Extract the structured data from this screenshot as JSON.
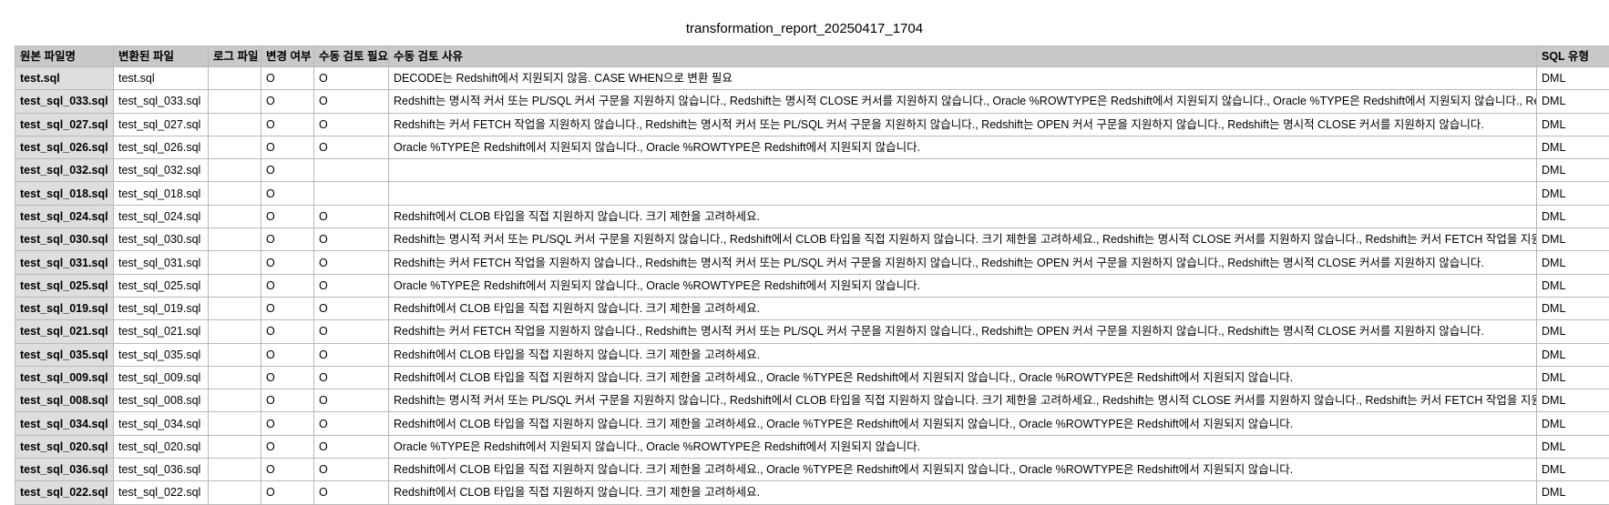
{
  "title": "transformation_report_20250417_1704",
  "columns": {
    "source_file": "원본 파일명",
    "converted_file": "변환된 파일",
    "log_file": "로그 파일",
    "changed": "변경 여부",
    "manual_review": "수동 검토 필요",
    "review_reason": "수동 검토 사유",
    "sql_type": "SQL 유형"
  },
  "rows": [
    {
      "source": "test.sql",
      "converted": "test.sql",
      "log": "",
      "changed": "O",
      "review": "O",
      "reason": "DECODE는 Redshift에서 지원되지 않음. CASE WHEN으로 변환 필요",
      "type": "DML"
    },
    {
      "source": "test_sql_033.sql",
      "converted": "test_sql_033.sql",
      "log": "",
      "changed": "O",
      "review": "O",
      "reason": "Redshift는 명시적 커서 또는 PL/SQL 커서 구문을 지원하지 않습니다., Redshift는 명시적 CLOSE 커서를 지원하지 않습니다., Oracle %ROWTYPE은 Redshift에서 지원되지 않습니다., Oracle %TYPE은 Redshift에서 지원되지 않습니다., Redshift는",
      "type": "DML"
    },
    {
      "source": "test_sql_027.sql",
      "converted": "test_sql_027.sql",
      "log": "",
      "changed": "O",
      "review": "O",
      "reason": "Redshift는 커서 FETCH 작업을 지원하지 않습니다., Redshift는 명시적 커서 또는 PL/SQL 커서 구문을 지원하지 않습니다., Redshift는 OPEN 커서 구문을 지원하지 않습니다., Redshift는 명시적 CLOSE 커서를 지원하지 않습니다.",
      "type": "DML"
    },
    {
      "source": "test_sql_026.sql",
      "converted": "test_sql_026.sql",
      "log": "",
      "changed": "O",
      "review": "O",
      "reason": "Oracle %TYPE은 Redshift에서 지원되지 않습니다., Oracle %ROWTYPE은 Redshift에서 지원되지 않습니다.",
      "type": "DML"
    },
    {
      "source": "test_sql_032.sql",
      "converted": "test_sql_032.sql",
      "log": "",
      "changed": "O",
      "review": "",
      "reason": "",
      "type": "DML"
    },
    {
      "source": "test_sql_018.sql",
      "converted": "test_sql_018.sql",
      "log": "",
      "changed": "O",
      "review": "",
      "reason": "",
      "type": "DML"
    },
    {
      "source": "test_sql_024.sql",
      "converted": "test_sql_024.sql",
      "log": "",
      "changed": "O",
      "review": "O",
      "reason": "Redshift에서 CLOB 타입을 직접 지원하지 않습니다. 크기 제한을 고려하세요.",
      "type": "DML"
    },
    {
      "source": "test_sql_030.sql",
      "converted": "test_sql_030.sql",
      "log": "",
      "changed": "O",
      "review": "O",
      "reason": "Redshift는 명시적 커서 또는 PL/SQL 커서 구문을 지원하지 않습니다., Redshift에서 CLOB 타입을 직접 지원하지 않습니다. 크기 제한을 고려하세요., Redshift는 명시적 CLOSE 커서를 지원하지 않습니다., Redshift는 커서 FETCH 작업을 지원하지 않습",
      "type": "DML"
    },
    {
      "source": "test_sql_031.sql",
      "converted": "test_sql_031.sql",
      "log": "",
      "changed": "O",
      "review": "O",
      "reason": "Redshift는 커서 FETCH 작업을 지원하지 않습니다., Redshift는 명시적 커서 또는 PL/SQL 커서 구문을 지원하지 않습니다., Redshift는 OPEN 커서 구문을 지원하지 않습니다., Redshift는 명시적 CLOSE 커서를 지원하지 않습니다.",
      "type": "DML"
    },
    {
      "source": "test_sql_025.sql",
      "converted": "test_sql_025.sql",
      "log": "",
      "changed": "O",
      "review": "O",
      "reason": "Oracle %TYPE은 Redshift에서 지원되지 않습니다., Oracle %ROWTYPE은 Redshift에서 지원되지 않습니다.",
      "type": "DML"
    },
    {
      "source": "test_sql_019.sql",
      "converted": "test_sql_019.sql",
      "log": "",
      "changed": "O",
      "review": "O",
      "reason": "Redshift에서 CLOB 타입을 직접 지원하지 않습니다. 크기 제한을 고려하세요.",
      "type": "DML"
    },
    {
      "source": "test_sql_021.sql",
      "converted": "test_sql_021.sql",
      "log": "",
      "changed": "O",
      "review": "O",
      "reason": "Redshift는 커서 FETCH 작업을 지원하지 않습니다., Redshift는 명시적 커서 또는 PL/SQL 커서 구문을 지원하지 않습니다., Redshift는 OPEN 커서 구문을 지원하지 않습니다., Redshift는 명시적 CLOSE 커서를 지원하지 않습니다.",
      "type": "DML"
    },
    {
      "source": "test_sql_035.sql",
      "converted": "test_sql_035.sql",
      "log": "",
      "changed": "O",
      "review": "O",
      "reason": "Redshift에서 CLOB 타입을 직접 지원하지 않습니다. 크기 제한을 고려하세요.",
      "type": "DML"
    },
    {
      "source": "test_sql_009.sql",
      "converted": "test_sql_009.sql",
      "log": "",
      "changed": "O",
      "review": "O",
      "reason": "Redshift에서 CLOB 타입을 직접 지원하지 않습니다. 크기 제한을 고려하세요., Oracle %TYPE은 Redshift에서 지원되지 않습니다., Oracle %ROWTYPE은 Redshift에서 지원되지 않습니다.",
      "type": "DML"
    },
    {
      "source": "test_sql_008.sql",
      "converted": "test_sql_008.sql",
      "log": "",
      "changed": "O",
      "review": "O",
      "reason": "Redshift는 명시적 커서 또는 PL/SQL 커서 구문을 지원하지 않습니다., Redshift에서 CLOB 타입을 직접 지원하지 않습니다. 크기 제한을 고려하세요., Redshift는 명시적 CLOSE 커서를 지원하지 않습니다., Redshift는 커서 FETCH 작업을 지원하지 않습",
      "type": "DML"
    },
    {
      "source": "test_sql_034.sql",
      "converted": "test_sql_034.sql",
      "log": "",
      "changed": "O",
      "review": "O",
      "reason": "Redshift에서 CLOB 타입을 직접 지원하지 않습니다. 크기 제한을 고려하세요., Oracle %TYPE은 Redshift에서 지원되지 않습니다., Oracle %ROWTYPE은 Redshift에서 지원되지 않습니다.",
      "type": "DML"
    },
    {
      "source": "test_sql_020.sql",
      "converted": "test_sql_020.sql",
      "log": "",
      "changed": "O",
      "review": "O",
      "reason": "Oracle %TYPE은 Redshift에서 지원되지 않습니다., Oracle %ROWTYPE은 Redshift에서 지원되지 않습니다.",
      "type": "DML"
    },
    {
      "source": "test_sql_036.sql",
      "converted": "test_sql_036.sql",
      "log": "",
      "changed": "O",
      "review": "O",
      "reason": "Redshift에서 CLOB 타입을 직접 지원하지 않습니다. 크기 제한을 고려하세요., Oracle %TYPE은 Redshift에서 지원되지 않습니다., Oracle %ROWTYPE은 Redshift에서 지원되지 않습니다.",
      "type": "DML"
    },
    {
      "source": "test_sql_022.sql",
      "converted": "test_sql_022.sql",
      "log": "",
      "changed": "O",
      "review": "O",
      "reason": "Redshift에서 CLOB 타입을 직접 지원하지 않습니다. 크기 제한을 고려하세요.",
      "type": "DML"
    }
  ]
}
